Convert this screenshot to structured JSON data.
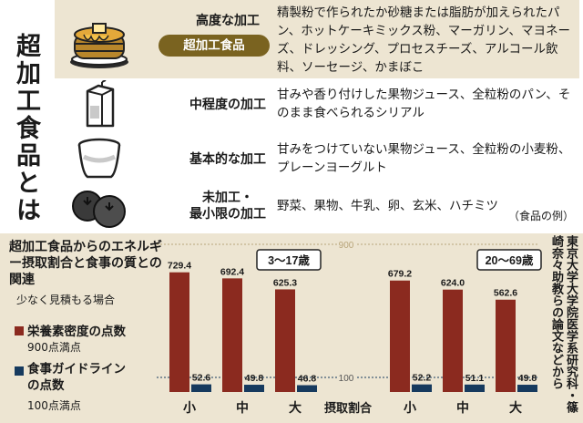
{
  "title": "超加工食品とは",
  "levels": [
    {
      "label": "高度な加工",
      "badge": "超加工食品",
      "examples": "精製粉で作られたか砂糖または脂肪が加えられたパン、ホットケーキミックス粉、マーガリン、マヨネーズ、ドレッシング、プロセスチーズ、アルコール飲料、ソーセージ、かまぼこ",
      "icon": "pancake-icon"
    },
    {
      "label": "中程度の加工",
      "examples": "甘みや香り付けした果物ジュース、全粒粉のパン、そのまま食べられるシリアル",
      "icon": "juice-carton-icon"
    },
    {
      "label": "基本的な加工",
      "examples": "甘みをつけていない果物ジュース、全粒粉の小麦粉、プレーンヨーグルト",
      "icon": "yogurt-cup-icon"
    },
    {
      "label": "未加工・\n最小限の加工",
      "examples": "野菜、果物、牛乳、卵、玄米、ハチミツ",
      "icon": "blueberry-icon"
    }
  ],
  "examples_note": "（食品の例）",
  "chart_title": "超加工食品からのエネルギー摂取割合と食事の質との関連",
  "chart_subtitle": "少なく見積もる場合",
  "legend": [
    {
      "name": "栄養素密度の点数",
      "sub": "900点満点",
      "color": "#8b2a1f"
    },
    {
      "name": "食事ガイドラインの点数",
      "sub": "100点満点",
      "color": "#163a5e"
    }
  ],
  "credit": "東京大学大学院医学系研究科・篠崎奈々助教らの論文などから",
  "chart_data": {
    "type": "bar",
    "ref_lines": [
      "900",
      "100"
    ],
    "axis_label": "摂取割合",
    "groups": [
      {
        "label": "3〜17歳",
        "categories": [
          "小",
          "中",
          "大"
        ],
        "series": [
          {
            "name": "栄養素密度の点数",
            "values": [
              729.4,
              692.4,
              625.3
            ],
            "labels": [
              "729.4",
              "692.4",
              "625.3"
            ],
            "max": 900
          },
          {
            "name": "食事ガイドラインの点数",
            "values": [
              52.6,
              49.8,
              46.8
            ],
            "labels": [
              "52.6",
              "49.8",
              "46.8"
            ],
            "max": 100
          }
        ]
      },
      {
        "label": "20〜69歳",
        "categories": [
          "小",
          "中",
          "大"
        ],
        "series": [
          {
            "name": "栄養素密度の点数",
            "values": [
              679.2,
              624.0,
              562.6
            ],
            "labels": [
              "679.2",
              "624.0",
              "562.6"
            ],
            "max": 900
          },
          {
            "name": "食事ガイドラインの点数",
            "values": [
              52.2,
              51.1,
              49.8
            ],
            "labels": [
              "52.2",
              "51.1",
              "49.8"
            ],
            "max": 100
          }
        ]
      }
    ]
  }
}
